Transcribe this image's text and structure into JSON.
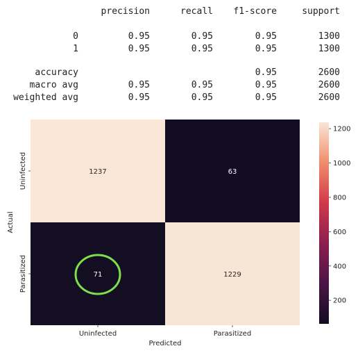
{
  "report": {
    "headers": [
      "precision",
      "recall",
      "f1-score",
      "support"
    ],
    "rows": [
      {
        "label": "0",
        "values": [
          "0.95",
          "0.95",
          "0.95",
          "1300"
        ]
      },
      {
        "label": "1",
        "values": [
          "0.95",
          "0.95",
          "0.95",
          "1300"
        ]
      },
      {
        "label": "accuracy",
        "values": [
          "",
          "",
          "0.95",
          "2600"
        ]
      },
      {
        "label": "macro avg",
        "values": [
          "0.95",
          "0.95",
          "0.95",
          "2600"
        ]
      },
      {
        "label": "weighted avg",
        "values": [
          "0.95",
          "0.95",
          "0.95",
          "2600"
        ]
      }
    ]
  },
  "chart_data": {
    "type": "heatmap",
    "title": "",
    "xlabel": "Predicted",
    "ylabel": "Actual",
    "x_categories": [
      "Uninfected",
      "Parasitized"
    ],
    "y_categories": [
      "Uninfected",
      "Parasitized"
    ],
    "values": [
      [
        1237,
        63
      ],
      [
        71,
        1229
      ]
    ],
    "colorbar": {
      "ticks": [
        "1200",
        "1000",
        "800",
        "600",
        "400",
        "200"
      ],
      "tick_values": [
        1200,
        1000,
        800,
        600,
        400,
        200
      ],
      "range": [
        63,
        1237
      ]
    },
    "annotation": {
      "row": 1,
      "col": 0,
      "color": "#7be04a"
    },
    "colors": {
      "high": "#f9e6d6",
      "low": "#120d22"
    }
  }
}
